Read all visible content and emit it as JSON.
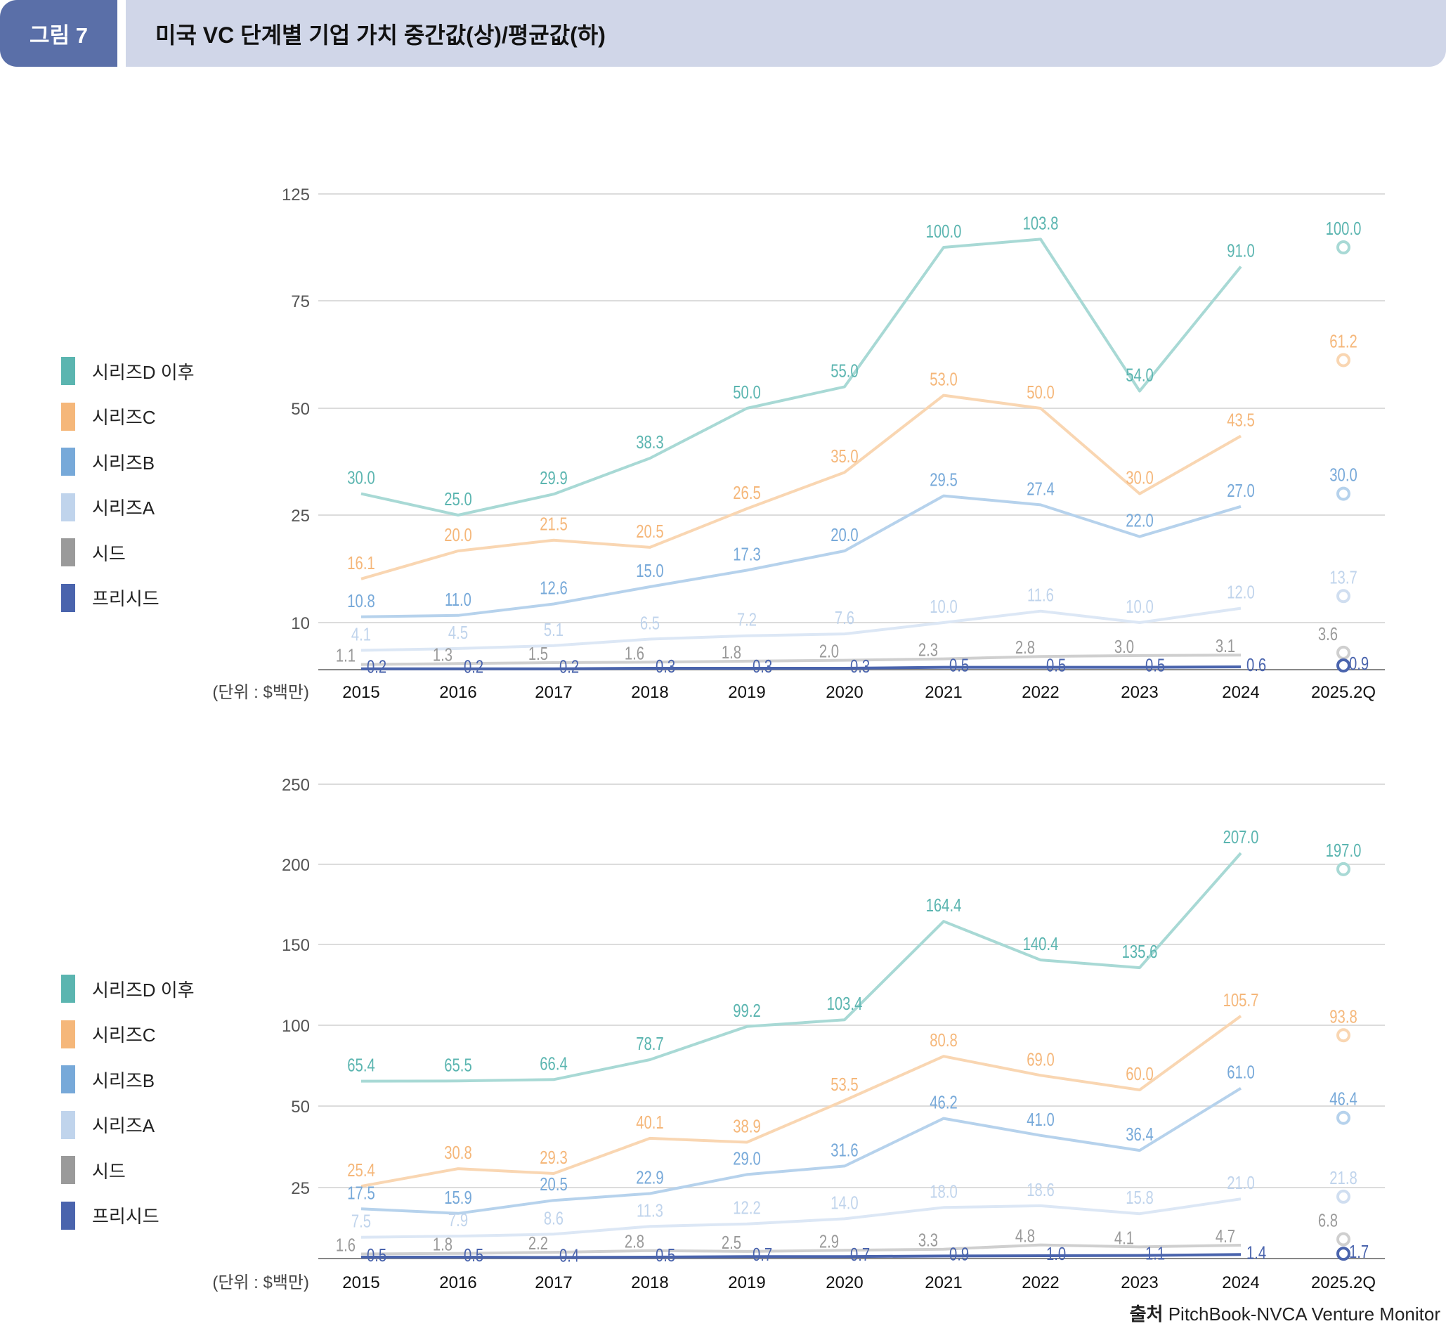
{
  "header": {
    "figure_label": "그림 7",
    "title": "미국 VC 단계별 기업 가치 중간값(상)/평균값(하)"
  },
  "source": {
    "label": "출처",
    "text": "PitchBook-NVCA Venture Monitor"
  },
  "colors": {
    "series_d": "#5bb5b0",
    "series_c": "#f5b77a",
    "series_b": "#77a9d9",
    "series_a": "#c0d4ec",
    "seed": "#9a9a9a",
    "pre_seed": "#4a64ad"
  },
  "chart_data": [
    {
      "type": "line",
      "title": "중간값",
      "unit_label": "(단위 : $백만)",
      "categories": [
        "2015",
        "2016",
        "2017",
        "2018",
        "2019",
        "2020",
        "2021",
        "2022",
        "2023",
        "2024",
        "2025.2Q"
      ],
      "yticks": [
        10,
        25,
        50,
        75,
        125
      ],
      "ylim": [
        0,
        125
      ],
      "legend": "left",
      "series": [
        {
          "key": "series_d",
          "name": "시리즈D 이후",
          "values": [
            30.0,
            25.0,
            29.9,
            38.3,
            50.0,
            55.0,
            100.0,
            103.8,
            54.0,
            91.0,
            100.0
          ]
        },
        {
          "key": "series_c",
          "name": "시리즈C",
          "values": [
            16.1,
            20.0,
            21.5,
            20.5,
            26.5,
            35.0,
            53.0,
            50.0,
            30.0,
            43.5,
            61.2
          ]
        },
        {
          "key": "series_b",
          "name": "시리즈B",
          "values": [
            10.8,
            11.0,
            12.6,
            15.0,
            17.3,
            20.0,
            29.5,
            27.4,
            22.0,
            27.0,
            30.0
          ]
        },
        {
          "key": "series_a",
          "name": "시리즈A",
          "values": [
            4.1,
            4.5,
            5.1,
            6.5,
            7.2,
            7.6,
            10.0,
            11.6,
            10.0,
            12.0,
            13.7
          ]
        },
        {
          "key": "seed",
          "name": "시드",
          "values": [
            1.1,
            1.3,
            1.5,
            1.6,
            1.8,
            2.0,
            2.3,
            2.8,
            3.0,
            3.1,
            3.6
          ]
        },
        {
          "key": "pre_seed",
          "name": "프리시드",
          "values": [
            0.2,
            0.2,
            0.2,
            0.3,
            0.3,
            0.3,
            0.5,
            0.5,
            0.5,
            0.6,
            0.9
          ]
        }
      ]
    },
    {
      "type": "line",
      "title": "평균값",
      "unit_label": "(단위 : $백만)",
      "categories": [
        "2015",
        "2016",
        "2017",
        "2018",
        "2019",
        "2020",
        "2021",
        "2022",
        "2023",
        "2024",
        "2025.2Q"
      ],
      "yticks": [
        25,
        50,
        100,
        150,
        200,
        250
      ],
      "ylim": [
        0,
        250
      ],
      "legend": "left",
      "series": [
        {
          "key": "series_d",
          "name": "시리즈D 이후",
          "values": [
            65.4,
            65.5,
            66.4,
            78.7,
            99.2,
            103.4,
            164.4,
            140.4,
            135.6,
            207.0,
            197.0
          ]
        },
        {
          "key": "series_c",
          "name": "시리즈C",
          "values": [
            25.4,
            30.8,
            29.3,
            40.1,
            38.9,
            53.5,
            80.8,
            69.0,
            60.0,
            105.7,
            93.8
          ]
        },
        {
          "key": "series_b",
          "name": "시리즈B",
          "values": [
            17.5,
            15.9,
            20.5,
            22.9,
            29.0,
            31.6,
            46.2,
            41.0,
            36.4,
            61.0,
            46.4
          ]
        },
        {
          "key": "series_a",
          "name": "시리즈A",
          "values": [
            7.5,
            7.9,
            8.6,
            11.3,
            12.2,
            14.0,
            18.0,
            18.6,
            15.8,
            21.0,
            21.8
          ]
        },
        {
          "key": "seed",
          "name": "시드",
          "values": [
            1.6,
            1.8,
            2.2,
            2.8,
            2.5,
            2.9,
            3.3,
            4.8,
            4.1,
            4.7,
            6.8
          ]
        },
        {
          "key": "pre_seed",
          "name": "프리시드",
          "values": [
            0.5,
            0.5,
            0.4,
            0.5,
            0.7,
            0.7,
            0.9,
            1.0,
            1.1,
            1.4,
            1.7
          ]
        }
      ]
    }
  ]
}
